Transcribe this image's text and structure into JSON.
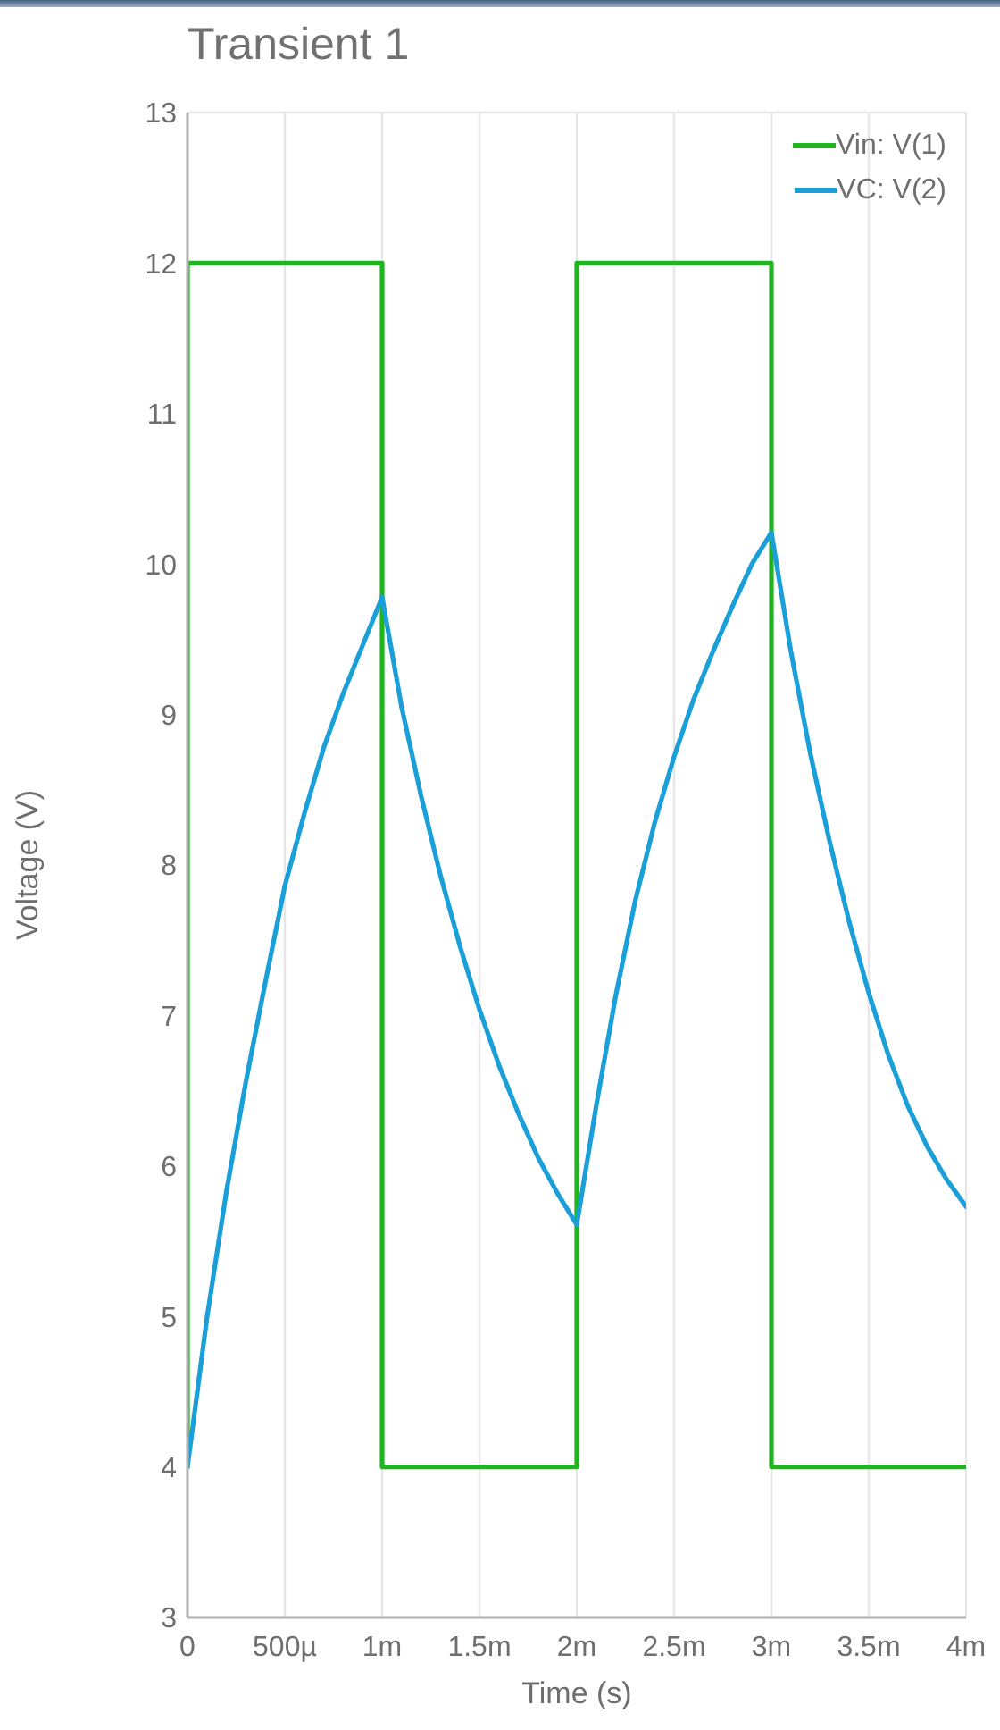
{
  "chart_data": {
    "type": "line",
    "title": "Transient 1",
    "xlabel": "Time (s)",
    "ylabel": "Voltage (V)",
    "categories": [
      "0",
      null,
      null,
      null,
      null,
      "500µ",
      null,
      null,
      null,
      null,
      "1m",
      null,
      null,
      null,
      null,
      "1.5m",
      null,
      null,
      null,
      null,
      "2m",
      null,
      null,
      null,
      null,
      "2.5m",
      null,
      null,
      null,
      null,
      "3m",
      null,
      null,
      null,
      null,
      "3.5m",
      null,
      null,
      null,
      null,
      "4m"
    ],
    "ylim": [
      3,
      13
    ],
    "yticks": [
      3,
      4,
      5,
      6,
      7,
      8,
      9,
      10,
      11,
      12,
      13
    ],
    "grid": true,
    "legend": "top right",
    "series": [
      {
        "name": "Vin: V(1)",
        "type": "step",
        "color": "#1fb51f",
        "values": [
          4,
          12,
          12,
          12,
          12,
          12,
          12,
          12,
          12,
          12,
          12,
          4,
          4,
          4,
          4,
          4,
          4,
          4,
          4,
          4,
          4,
          12,
          12,
          12,
          12,
          12,
          12,
          12,
          12,
          12,
          12,
          4,
          4,
          4,
          4,
          4,
          4,
          4,
          4,
          4,
          4
        ]
      },
      {
        "name": "VC: V(2)",
        "color": "#1a9fd9",
        "values": [
          4.0,
          4.99,
          5.83,
          6.56,
          7.22,
          7.86,
          8.34,
          8.78,
          9.14,
          9.46,
          9.78,
          9.05,
          8.46,
          7.93,
          7.46,
          7.04,
          6.67,
          6.35,
          6.06,
          5.82,
          5.61,
          6.4,
          7.13,
          7.76,
          8.28,
          8.72,
          9.1,
          9.42,
          9.72,
          10.0,
          10.21,
          9.42,
          8.74,
          8.15,
          7.62,
          7.15,
          6.74,
          6.4,
          6.13,
          5.91,
          5.73
        ]
      }
    ]
  }
}
